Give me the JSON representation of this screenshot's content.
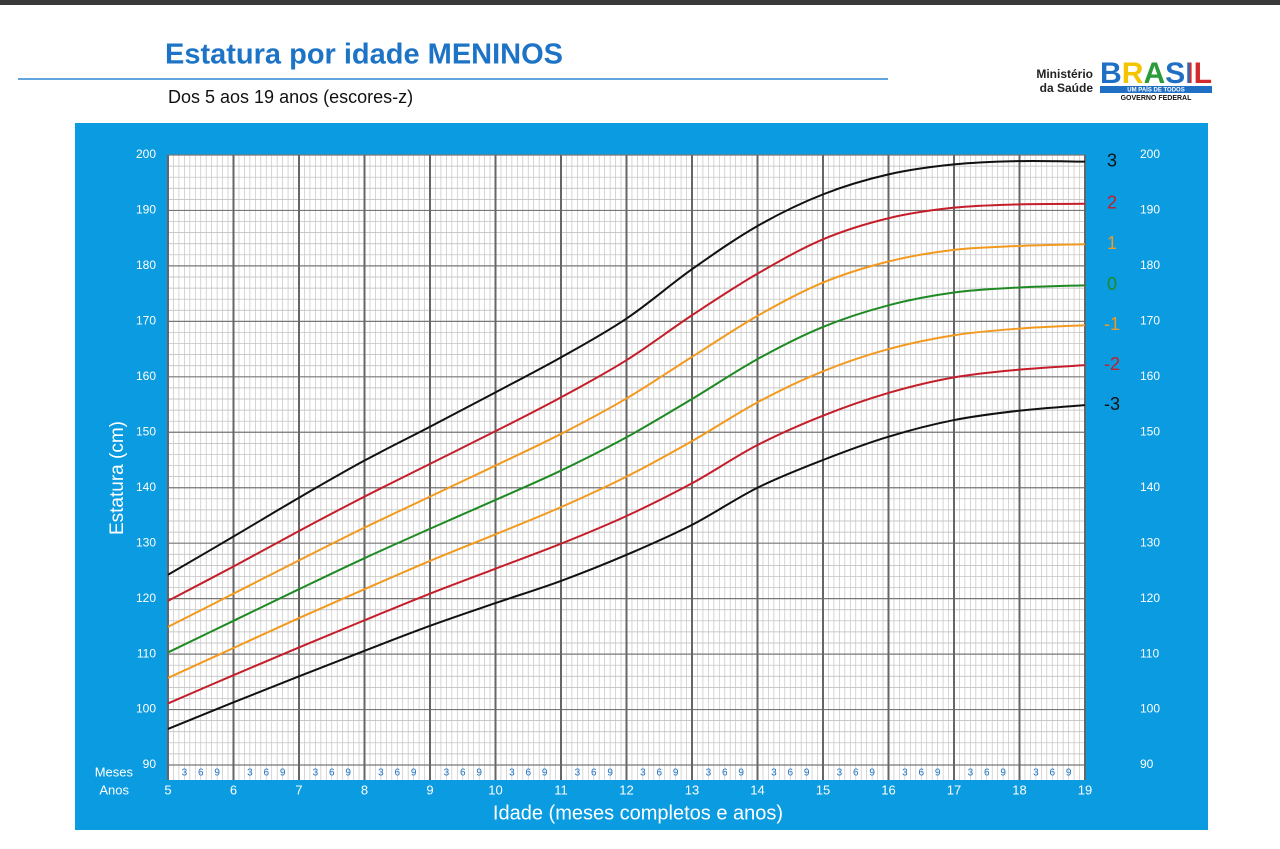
{
  "chart_data": {
    "type": "line",
    "title": "Estatura por idade MENINOS",
    "subtitle": "Dos 5 aos 19 anos (escores-z)",
    "y_label": "Estatura (cm)",
    "x_label": "Idade (meses completos e anos)",
    "x_minor_title": "Meses",
    "x_major_title": "Anos",
    "x_minor_labels": [
      "3",
      "6",
      "9"
    ],
    "x": [
      5,
      6,
      7,
      8,
      9,
      10,
      11,
      12,
      13,
      14,
      15,
      16,
      17,
      18,
      19
    ],
    "xlim": [
      5,
      19
    ],
    "xticks": [
      5,
      6,
      7,
      8,
      9,
      10,
      11,
      12,
      13,
      14,
      15,
      16,
      17,
      18,
      19
    ],
    "ylim": [
      90,
      200
    ],
    "yticks": [
      90,
      100,
      110,
      120,
      130,
      140,
      150,
      160,
      170,
      180,
      190,
      200
    ],
    "grid": true,
    "series": [
      {
        "name": "3",
        "color": "#111111",
        "values": [
          124.3,
          131.2,
          138.2,
          144.9,
          151.0,
          157.2,
          163.5,
          170.5,
          179.4,
          187.2,
          192.9,
          196.5,
          198.3,
          198.9,
          198.8
        ]
      },
      {
        "name": "2",
        "color": "#c41e2a",
        "values": [
          119.6,
          125.8,
          132.2,
          138.4,
          144.3,
          150.2,
          156.3,
          163.0,
          171.1,
          178.6,
          184.8,
          188.6,
          190.5,
          191.1,
          191.2
        ]
      },
      {
        "name": "1",
        "color": "#f29a1f",
        "values": [
          114.9,
          120.9,
          126.9,
          132.8,
          138.4,
          144.0,
          149.7,
          156.1,
          163.6,
          171.0,
          177.0,
          180.8,
          182.9,
          183.6,
          183.9
        ]
      },
      {
        "name": "0",
        "color": "#1f8a24",
        "values": [
          110.3,
          116.0,
          121.7,
          127.3,
          132.6,
          137.8,
          143.1,
          149.1,
          156.0,
          163.2,
          169.0,
          172.9,
          175.2,
          176.1,
          176.5
        ]
      },
      {
        "name": "-1",
        "color": "#f29a1f",
        "values": [
          105.7,
          111.1,
          116.5,
          121.7,
          126.8,
          131.6,
          136.5,
          142.0,
          148.4,
          155.4,
          161.0,
          165.0,
          167.5,
          168.7,
          169.3
        ]
      },
      {
        "name": "-2",
        "color": "#c41e2a",
        "values": [
          101.1,
          106.2,
          111.2,
          116.1,
          120.9,
          125.4,
          129.9,
          134.9,
          140.8,
          147.7,
          153.0,
          157.1,
          159.9,
          161.3,
          162.1
        ]
      },
      {
        "name": "-3",
        "color": "#111111",
        "values": [
          96.5,
          101.3,
          106.0,
          110.6,
          115.1,
          119.2,
          123.2,
          127.9,
          133.3,
          140.0,
          145.0,
          149.2,
          152.2,
          153.9,
          154.9
        ]
      }
    ]
  },
  "logo": {
    "ministry_line1": "Ministério",
    "ministry_line2": "da Saúde",
    "brand": "BRASIL",
    "tagline": "UM PAÍS DE TODOS",
    "government": "GOVERNO FEDERAL"
  }
}
